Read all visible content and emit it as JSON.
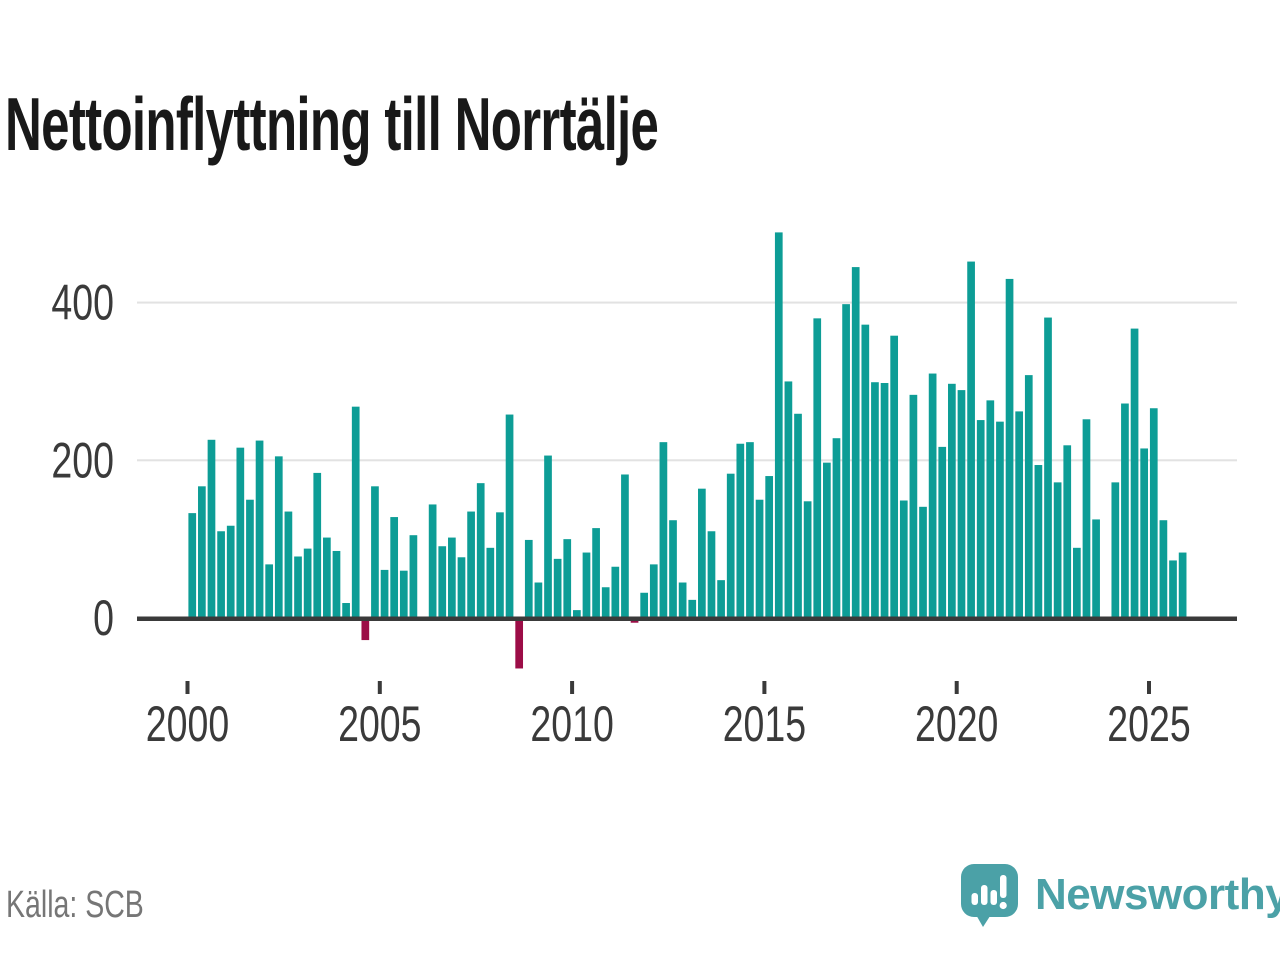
{
  "title": "Nettoinflyttning till Norrtälje",
  "source": "Källa: SCB",
  "branding": {
    "logo_text": "Newsworthy",
    "logo_icon": "newsworthy-bubble-barchart-icon",
    "logo_color": "#4ba1a7"
  },
  "colors": {
    "bar_positive": "#0d9d96",
    "bar_negative": "#9c0d47",
    "axis": "#3a3a3a",
    "gridline": "#e2e2e2",
    "tick_label": "#3a3a3a",
    "source_text": "#767676",
    "title_text": "#191919"
  },
  "chart_data": {
    "type": "bar",
    "title": "Nettoinflyttning till Norrtälje",
    "unit": "persons per quarter (net migration)",
    "x": [
      "2000Q1",
      "2000Q2",
      "2000Q3",
      "2000Q4",
      "2001Q1",
      "2001Q2",
      "2001Q3",
      "2001Q4",
      "2002Q1",
      "2002Q2",
      "2002Q3",
      "2002Q4",
      "2003Q1",
      "2003Q2",
      "2003Q3",
      "2003Q4",
      "2004Q1",
      "2004Q2",
      "2004Q3",
      "2004Q4",
      "2005Q1",
      "2005Q2",
      "2005Q3",
      "2005Q4",
      "2006Q1",
      "2006Q2",
      "2006Q3",
      "2006Q4",
      "2007Q1",
      "2007Q2",
      "2007Q3",
      "2007Q4",
      "2008Q1",
      "2008Q2",
      "2008Q3",
      "2008Q4",
      "2009Q1",
      "2009Q2",
      "2009Q3",
      "2009Q4",
      "2010Q1",
      "2010Q2",
      "2010Q3",
      "2010Q4",
      "2011Q1",
      "2011Q2",
      "2011Q3",
      "2011Q4",
      "2012Q1",
      "2012Q2",
      "2012Q3",
      "2012Q4",
      "2013Q1",
      "2013Q2",
      "2013Q3",
      "2013Q4",
      "2014Q1",
      "2014Q2",
      "2014Q3",
      "2014Q4",
      "2015Q1",
      "2015Q2",
      "2015Q3",
      "2015Q4",
      "2016Q1",
      "2016Q2",
      "2016Q3",
      "2016Q4",
      "2017Q1",
      "2017Q2",
      "2017Q3",
      "2017Q4",
      "2018Q1",
      "2018Q2",
      "2018Q3",
      "2018Q4",
      "2019Q1",
      "2019Q2",
      "2019Q3",
      "2019Q4",
      "2020Q1",
      "2020Q2",
      "2020Q3",
      "2020Q4",
      "2021Q1",
      "2021Q2",
      "2021Q3",
      "2021Q4",
      "2022Q1",
      "2022Q2",
      "2022Q3",
      "2022Q4",
      "2023Q1",
      "2023Q2",
      "2023Q3",
      "2023Q4",
      "2024Q1",
      "2024Q2",
      "2024Q3",
      "2024Q4",
      "2025Q1",
      "2025Q2",
      "2025Q3",
      "2025Q4"
    ],
    "values": [
      133,
      167,
      226,
      110,
      117,
      216,
      150,
      225,
      68,
      205,
      135,
      78,
      88,
      184,
      102,
      85,
      19,
      268,
      -28,
      167,
      61,
      128,
      60,
      105,
      0,
      144,
      91,
      102,
      77,
      135,
      171,
      89,
      134,
      258,
      -64,
      99,
      45,
      206,
      75,
      100,
      10,
      83,
      114,
      39,
      65,
      182,
      -6,
      32,
      68,
      223,
      124,
      45,
      23,
      164,
      110,
      48,
      183,
      221,
      223,
      150,
      180,
      489,
      300,
      259,
      148,
      380,
      197,
      228,
      398,
      445,
      372,
      299,
      298,
      358,
      149,
      283,
      141,
      310,
      217,
      297,
      289,
      452,
      251,
      276,
      249,
      430,
      262,
      308,
      194,
      381,
      172,
      219,
      89,
      252,
      125,
      0,
      172,
      272,
      367,
      215,
      266,
      124,
      73,
      83
    ],
    "xlabel": "",
    "ylabel": "",
    "yticks": [
      0,
      200,
      400
    ],
    "xticks": [
      "2000",
      "2005",
      "2010",
      "2015",
      "2020",
      "2025"
    ],
    "ylim": [
      -100,
      500
    ],
    "grid": "horizontal",
    "legend": "none",
    "note_negative_bars": "negative quarters drawn downward in dark red: 2004Q3, 2008Q3, 2011Q3"
  }
}
